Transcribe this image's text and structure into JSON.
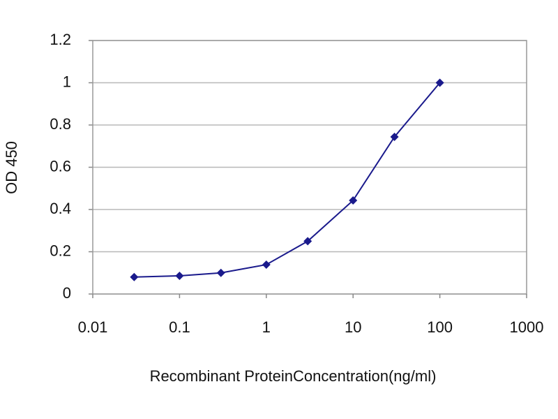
{
  "chart_data": {
    "type": "line",
    "xlabel": "Recombinant ProteinConcentration(ng/ml)",
    "ylabel": "OD 450",
    "x": [
      0.03,
      0.1,
      0.3,
      1,
      3,
      10,
      30,
      100
    ],
    "series": [
      {
        "name": "OD 450",
        "color": "#1a1a8c",
        "values": [
          0.08,
          0.086,
          0.1,
          0.139,
          0.25,
          0.443,
          0.744,
          1.0
        ]
      }
    ],
    "xscale": "log",
    "xlim": [
      0.01,
      1000
    ],
    "xticks": [
      0.01,
      0.1,
      1,
      10,
      100,
      1000
    ],
    "ylim": [
      0,
      1.2
    ],
    "yticks": [
      0,
      0.2,
      0.4,
      0.6,
      0.8,
      1,
      1.2
    ],
    "grid": true
  }
}
